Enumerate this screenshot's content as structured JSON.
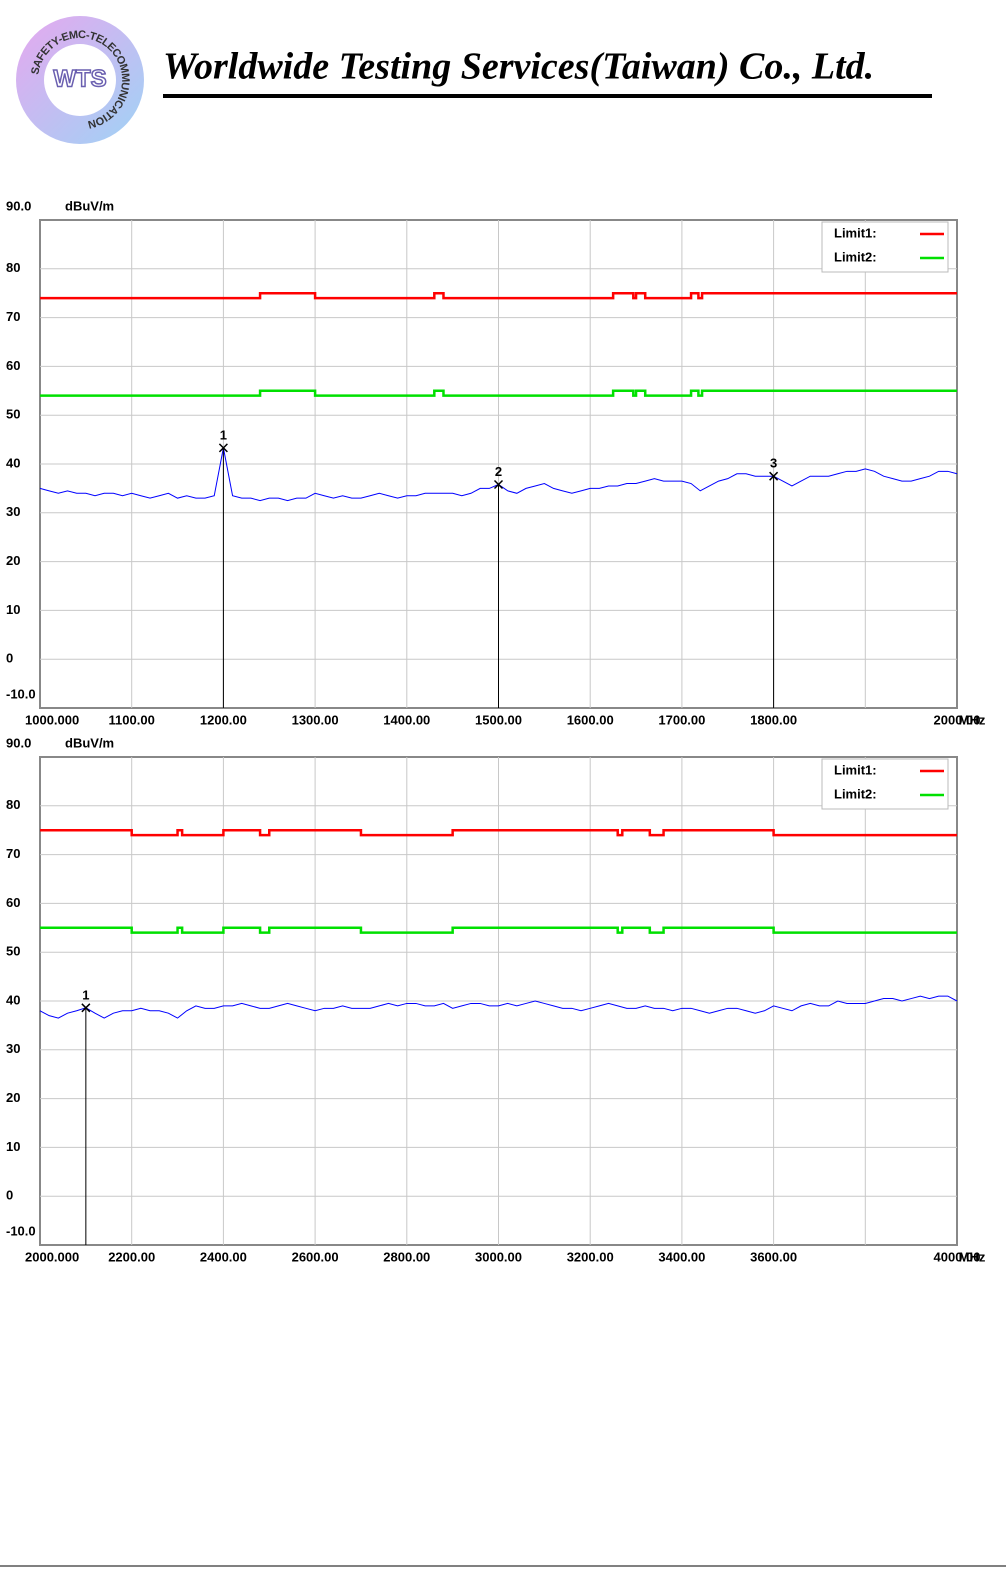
{
  "header": {
    "title": "Worldwide Testing Services(Taiwan) Co., Ltd.",
    "logo_text": "WTS",
    "ring_text": "SAFETY-EMC-TELECOMMUNICATION"
  },
  "chart_data": [
    {
      "type": "line",
      "y_unit": "dBuV/m",
      "x_unit": "MHz",
      "grid": true,
      "legend": "top-right",
      "xlim": [
        1000,
        2000
      ],
      "ylim": [
        -10,
        90
      ],
      "xticks": [
        {
          "value": 1000,
          "label": "1000.000"
        },
        {
          "value": 1100,
          "label": "1100.00"
        },
        {
          "value": 1200,
          "label": "1200.00"
        },
        {
          "value": 1300,
          "label": "1300.00"
        },
        {
          "value": 1400,
          "label": "1400.00"
        },
        {
          "value": 1500,
          "label": "1500.00"
        },
        {
          "value": 1600,
          "label": "1600.00"
        },
        {
          "value": 1700,
          "label": "1700.00"
        },
        {
          "value": 1800,
          "label": "1800.00"
        },
        {
          "value": 1900,
          "label": null
        },
        {
          "value": 2000,
          "label": "2000.00"
        }
      ],
      "yticks": [
        {
          "value": 90,
          "label": "90.0"
        },
        80,
        70,
        60,
        50,
        40,
        30,
        20,
        10,
        0,
        {
          "value": -10,
          "label": "-10.0"
        }
      ],
      "series": [
        {
          "name": "Limit1:",
          "color": "#ff0000",
          "x": [
            1000,
            1240,
            1240,
            1300,
            1300,
            1430,
            1430,
            1440,
            1440,
            1625,
            1625,
            1647,
            1647,
            1650,
            1650,
            1660,
            1660,
            1710,
            1710,
            1718,
            1718,
            1722,
            1722,
            2000
          ],
          "values": [
            74,
            74,
            75,
            75,
            74,
            74,
            75,
            75,
            74,
            74,
            75,
            75,
            74,
            74,
            75,
            75,
            74,
            74,
            75,
            75,
            74,
            74,
            75,
            75
          ]
        },
        {
          "name": "Limit2:",
          "color": "#00e000",
          "x": [
            1000,
            1240,
            1240,
            1300,
            1300,
            1430,
            1430,
            1440,
            1440,
            1625,
            1625,
            1647,
            1647,
            1650,
            1650,
            1660,
            1660,
            1710,
            1710,
            1718,
            1718,
            1722,
            1722,
            2000
          ],
          "values": [
            54,
            54,
            55,
            55,
            54,
            54,
            55,
            55,
            54,
            54,
            55,
            55,
            54,
            54,
            55,
            55,
            54,
            54,
            55,
            55,
            54,
            54,
            55,
            55
          ]
        },
        {
          "color": "#0000ff",
          "x": [
            1000,
            1010,
            1020,
            1030,
            1040,
            1050,
            1060,
            1070,
            1080,
            1090,
            1100,
            1110,
            1120,
            1130,
            1140,
            1150,
            1160,
            1170,
            1180,
            1190,
            1200,
            1210,
            1220,
            1230,
            1240,
            1250,
            1260,
            1270,
            1280,
            1290,
            1300,
            1310,
            1320,
            1330,
            1340,
            1350,
            1360,
            1370,
            1380,
            1390,
            1400,
            1410,
            1420,
            1430,
            1440,
            1450,
            1460,
            1470,
            1480,
            1490,
            1500,
            1510,
            1520,
            1530,
            1540,
            1550,
            1560,
            1570,
            1580,
            1590,
            1600,
            1610,
            1620,
            1630,
            1640,
            1650,
            1660,
            1670,
            1680,
            1690,
            1700,
            1710,
            1720,
            1730,
            1740,
            1750,
            1760,
            1770,
            1780,
            1790,
            1800,
            1810,
            1820,
            1830,
            1840,
            1850,
            1860,
            1870,
            1880,
            1890,
            1900,
            1910,
            1920,
            1930,
            1940,
            1950,
            1960,
            1970,
            1980,
            1990,
            2000
          ],
          "values": [
            35,
            34.5,
            34,
            34.5,
            34,
            34,
            33.5,
            34,
            34,
            33.5,
            34,
            33.5,
            33,
            33.5,
            34,
            33,
            33.5,
            33,
            33,
            33.5,
            43.3,
            33.5,
            33,
            33,
            32.5,
            33,
            33,
            32.5,
            33,
            33,
            34,
            33.5,
            33,
            33.5,
            33,
            33,
            33.5,
            34,
            33.5,
            33,
            33.5,
            33.5,
            34,
            34,
            34,
            34,
            33.5,
            34,
            35,
            35,
            35.8,
            34.5,
            34,
            35,
            35.5,
            36,
            35,
            34.5,
            34,
            34.5,
            35,
            35,
            35.5,
            35.5,
            36,
            36,
            36.5,
            37,
            36.5,
            36.5,
            36.5,
            36,
            34.5,
            35.5,
            36.5,
            37,
            38,
            38,
            37.5,
            37.5,
            37.5,
            36.5,
            35.5,
            36.5,
            37.5,
            37.5,
            37.5,
            38,
            38.5,
            38.5,
            39,
            38.5,
            37.5,
            37,
            36.5,
            36.5,
            37,
            37.5,
            38.5,
            38.5,
            38
          ]
        }
      ],
      "markers": [
        {
          "label": "1",
          "x": 1200,
          "value": 43.3
        },
        {
          "label": "2",
          "x": 1500,
          "value": 35.8
        },
        {
          "label": "3",
          "x": 1800,
          "value": 37.5
        }
      ]
    },
    {
      "type": "line",
      "y_unit": "dBuV/m",
      "x_unit": "MHz",
      "grid": true,
      "legend": "top-right",
      "xlim": [
        2000,
        4000
      ],
      "ylim": [
        -10,
        90
      ],
      "xticks": [
        {
          "value": 2000,
          "label": "2000.000"
        },
        {
          "value": 2200,
          "label": "2200.00"
        },
        {
          "value": 2400,
          "label": "2400.00"
        },
        {
          "value": 2600,
          "label": "2600.00"
        },
        {
          "value": 2800,
          "label": "2800.00"
        },
        {
          "value": 3000,
          "label": "3000.00"
        },
        {
          "value": 3200,
          "label": "3200.00"
        },
        {
          "value": 3400,
          "label": "3400.00"
        },
        {
          "value": 3600,
          "label": "3600.00"
        },
        {
          "value": 3800,
          "label": null
        },
        {
          "value": 4000,
          "label": "4000.00"
        }
      ],
      "yticks": [
        {
          "value": 90,
          "label": "90.0"
        },
        80,
        70,
        60,
        50,
        40,
        30,
        20,
        10,
        0,
        {
          "value": -10,
          "label": "-10.0"
        }
      ],
      "series": [
        {
          "name": "Limit1:",
          "color": "#ff0000",
          "x": [
            2000,
            2200,
            2200,
            2300,
            2300,
            2310,
            2310,
            2400,
            2400,
            2480,
            2480,
            2500,
            2500,
            2700,
            2700,
            2900,
            2900,
            3260,
            3260,
            3270,
            3270,
            3330,
            3330,
            3360,
            3360,
            3600,
            3600,
            4000
          ],
          "values": [
            75,
            75,
            74,
            74,
            75,
            75,
            74,
            74,
            75,
            75,
            74,
            74,
            75,
            75,
            74,
            74,
            75,
            75,
            74,
            74,
            75,
            75,
            74,
            74,
            75,
            75,
            74,
            74
          ]
        },
        {
          "name": "Limit2:",
          "color": "#00e000",
          "x": [
            2000,
            2200,
            2200,
            2300,
            2300,
            2310,
            2310,
            2400,
            2400,
            2480,
            2480,
            2500,
            2500,
            2700,
            2700,
            2900,
            2900,
            3260,
            3260,
            3270,
            3270,
            3330,
            3330,
            3360,
            3360,
            3600,
            3600,
            4000
          ],
          "values": [
            55,
            55,
            54,
            54,
            55,
            55,
            54,
            54,
            55,
            55,
            54,
            54,
            55,
            55,
            54,
            54,
            55,
            55,
            54,
            54,
            55,
            55,
            54,
            54,
            55,
            55,
            54,
            54
          ]
        },
        {
          "color": "#0000ff",
          "x": [
            2000,
            2020,
            2040,
            2060,
            2080,
            2100,
            2120,
            2140,
            2160,
            2180,
            2200,
            2220,
            2240,
            2260,
            2280,
            2300,
            2320,
            2340,
            2360,
            2380,
            2400,
            2420,
            2440,
            2460,
            2480,
            2500,
            2520,
            2540,
            2560,
            2580,
            2600,
            2620,
            2640,
            2660,
            2680,
            2700,
            2720,
            2740,
            2760,
            2780,
            2800,
            2820,
            2840,
            2860,
            2880,
            2900,
            2920,
            2940,
            2960,
            2980,
            3000,
            3020,
            3040,
            3060,
            3080,
            3100,
            3120,
            3140,
            3160,
            3180,
            3200,
            3220,
            3240,
            3260,
            3280,
            3300,
            3320,
            3340,
            3360,
            3380,
            3400,
            3420,
            3440,
            3460,
            3480,
            3500,
            3520,
            3540,
            3560,
            3580,
            3600,
            3620,
            3640,
            3660,
            3680,
            3700,
            3720,
            3740,
            3760,
            3780,
            3800,
            3820,
            3840,
            3860,
            3880,
            3900,
            3920,
            3940,
            3960,
            3980,
            4000
          ],
          "values": [
            38,
            37,
            36.5,
            37.5,
            38,
            38.6,
            37.5,
            36.5,
            37.5,
            38,
            38,
            38.5,
            38,
            38,
            37.5,
            36.5,
            38,
            39,
            38.5,
            38.5,
            39,
            39,
            39.5,
            39,
            38.5,
            38.5,
            39,
            39.5,
            39,
            38.5,
            38,
            38.5,
            38.5,
            39,
            38.5,
            38.5,
            38.5,
            39,
            39.5,
            39,
            39.5,
            39.5,
            39,
            39,
            39.5,
            38.5,
            39,
            39.5,
            39.5,
            39,
            39,
            39.5,
            39,
            39.5,
            40,
            39.5,
            39,
            38.5,
            38.5,
            38,
            38.5,
            39,
            39.5,
            39,
            38.5,
            38.5,
            39,
            38.5,
            38.5,
            38,
            38.5,
            38.5,
            38,
            37.5,
            38,
            38.5,
            38.5,
            38,
            37.5,
            38,
            39,
            38.5,
            38,
            39,
            39.5,
            39,
            39,
            40,
            39.5,
            39.5,
            39.5,
            40,
            40.5,
            40.5,
            40,
            40.5,
            41,
            40.5,
            41,
            41,
            40
          ]
        }
      ],
      "markers": [
        {
          "label": "1",
          "x": 2100,
          "value": 38.6
        }
      ]
    }
  ]
}
